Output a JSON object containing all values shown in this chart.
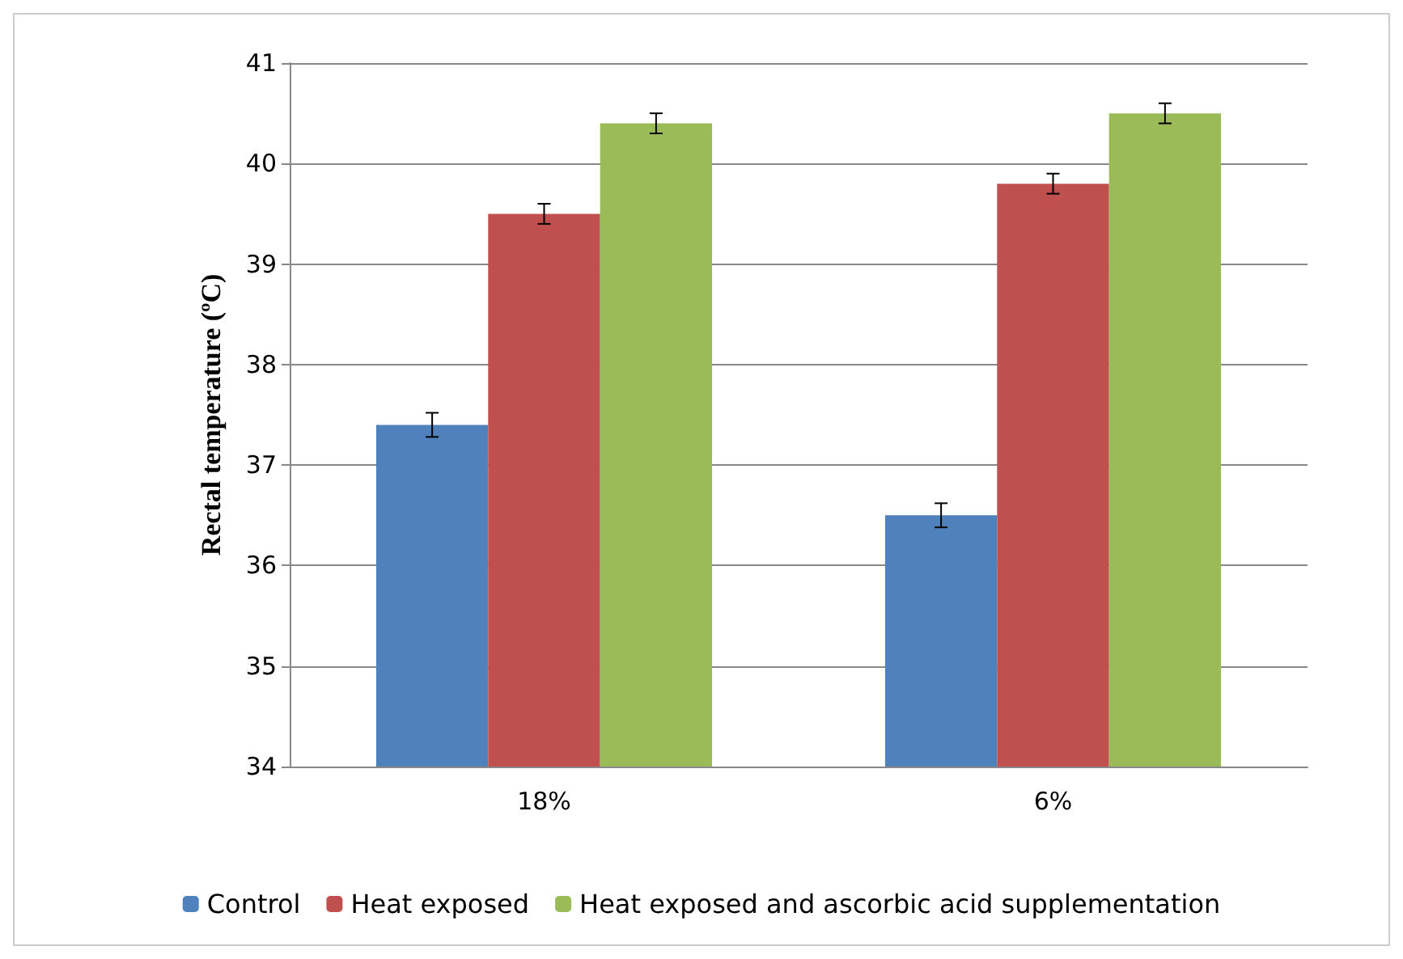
{
  "chart_data": {
    "type": "bar",
    "ylabel": "Rectal temperature (ºC)",
    "categories": [
      "18%",
      "6%"
    ],
    "series": [
      {
        "name": "Control",
        "color": "#4f81bd",
        "values": [
          37.4,
          36.5
        ],
        "errors": [
          0.12,
          0.12
        ]
      },
      {
        "name": "Heat exposed",
        "color": "#c0504d",
        "values": [
          39.5,
          39.8
        ],
        "errors": [
          0.1,
          0.1
        ]
      },
      {
        "name": "Heat exposed and ascorbic acid supplementation",
        "color": "#9bbb59",
        "values": [
          40.4,
          40.5
        ],
        "errors": [
          0.1,
          0.1
        ]
      }
    ],
    "ylim": [
      34,
      41
    ],
    "yticks": [
      34,
      35,
      36,
      37,
      38,
      39,
      40,
      41
    ],
    "grid": "y",
    "legend": "bottom"
  }
}
